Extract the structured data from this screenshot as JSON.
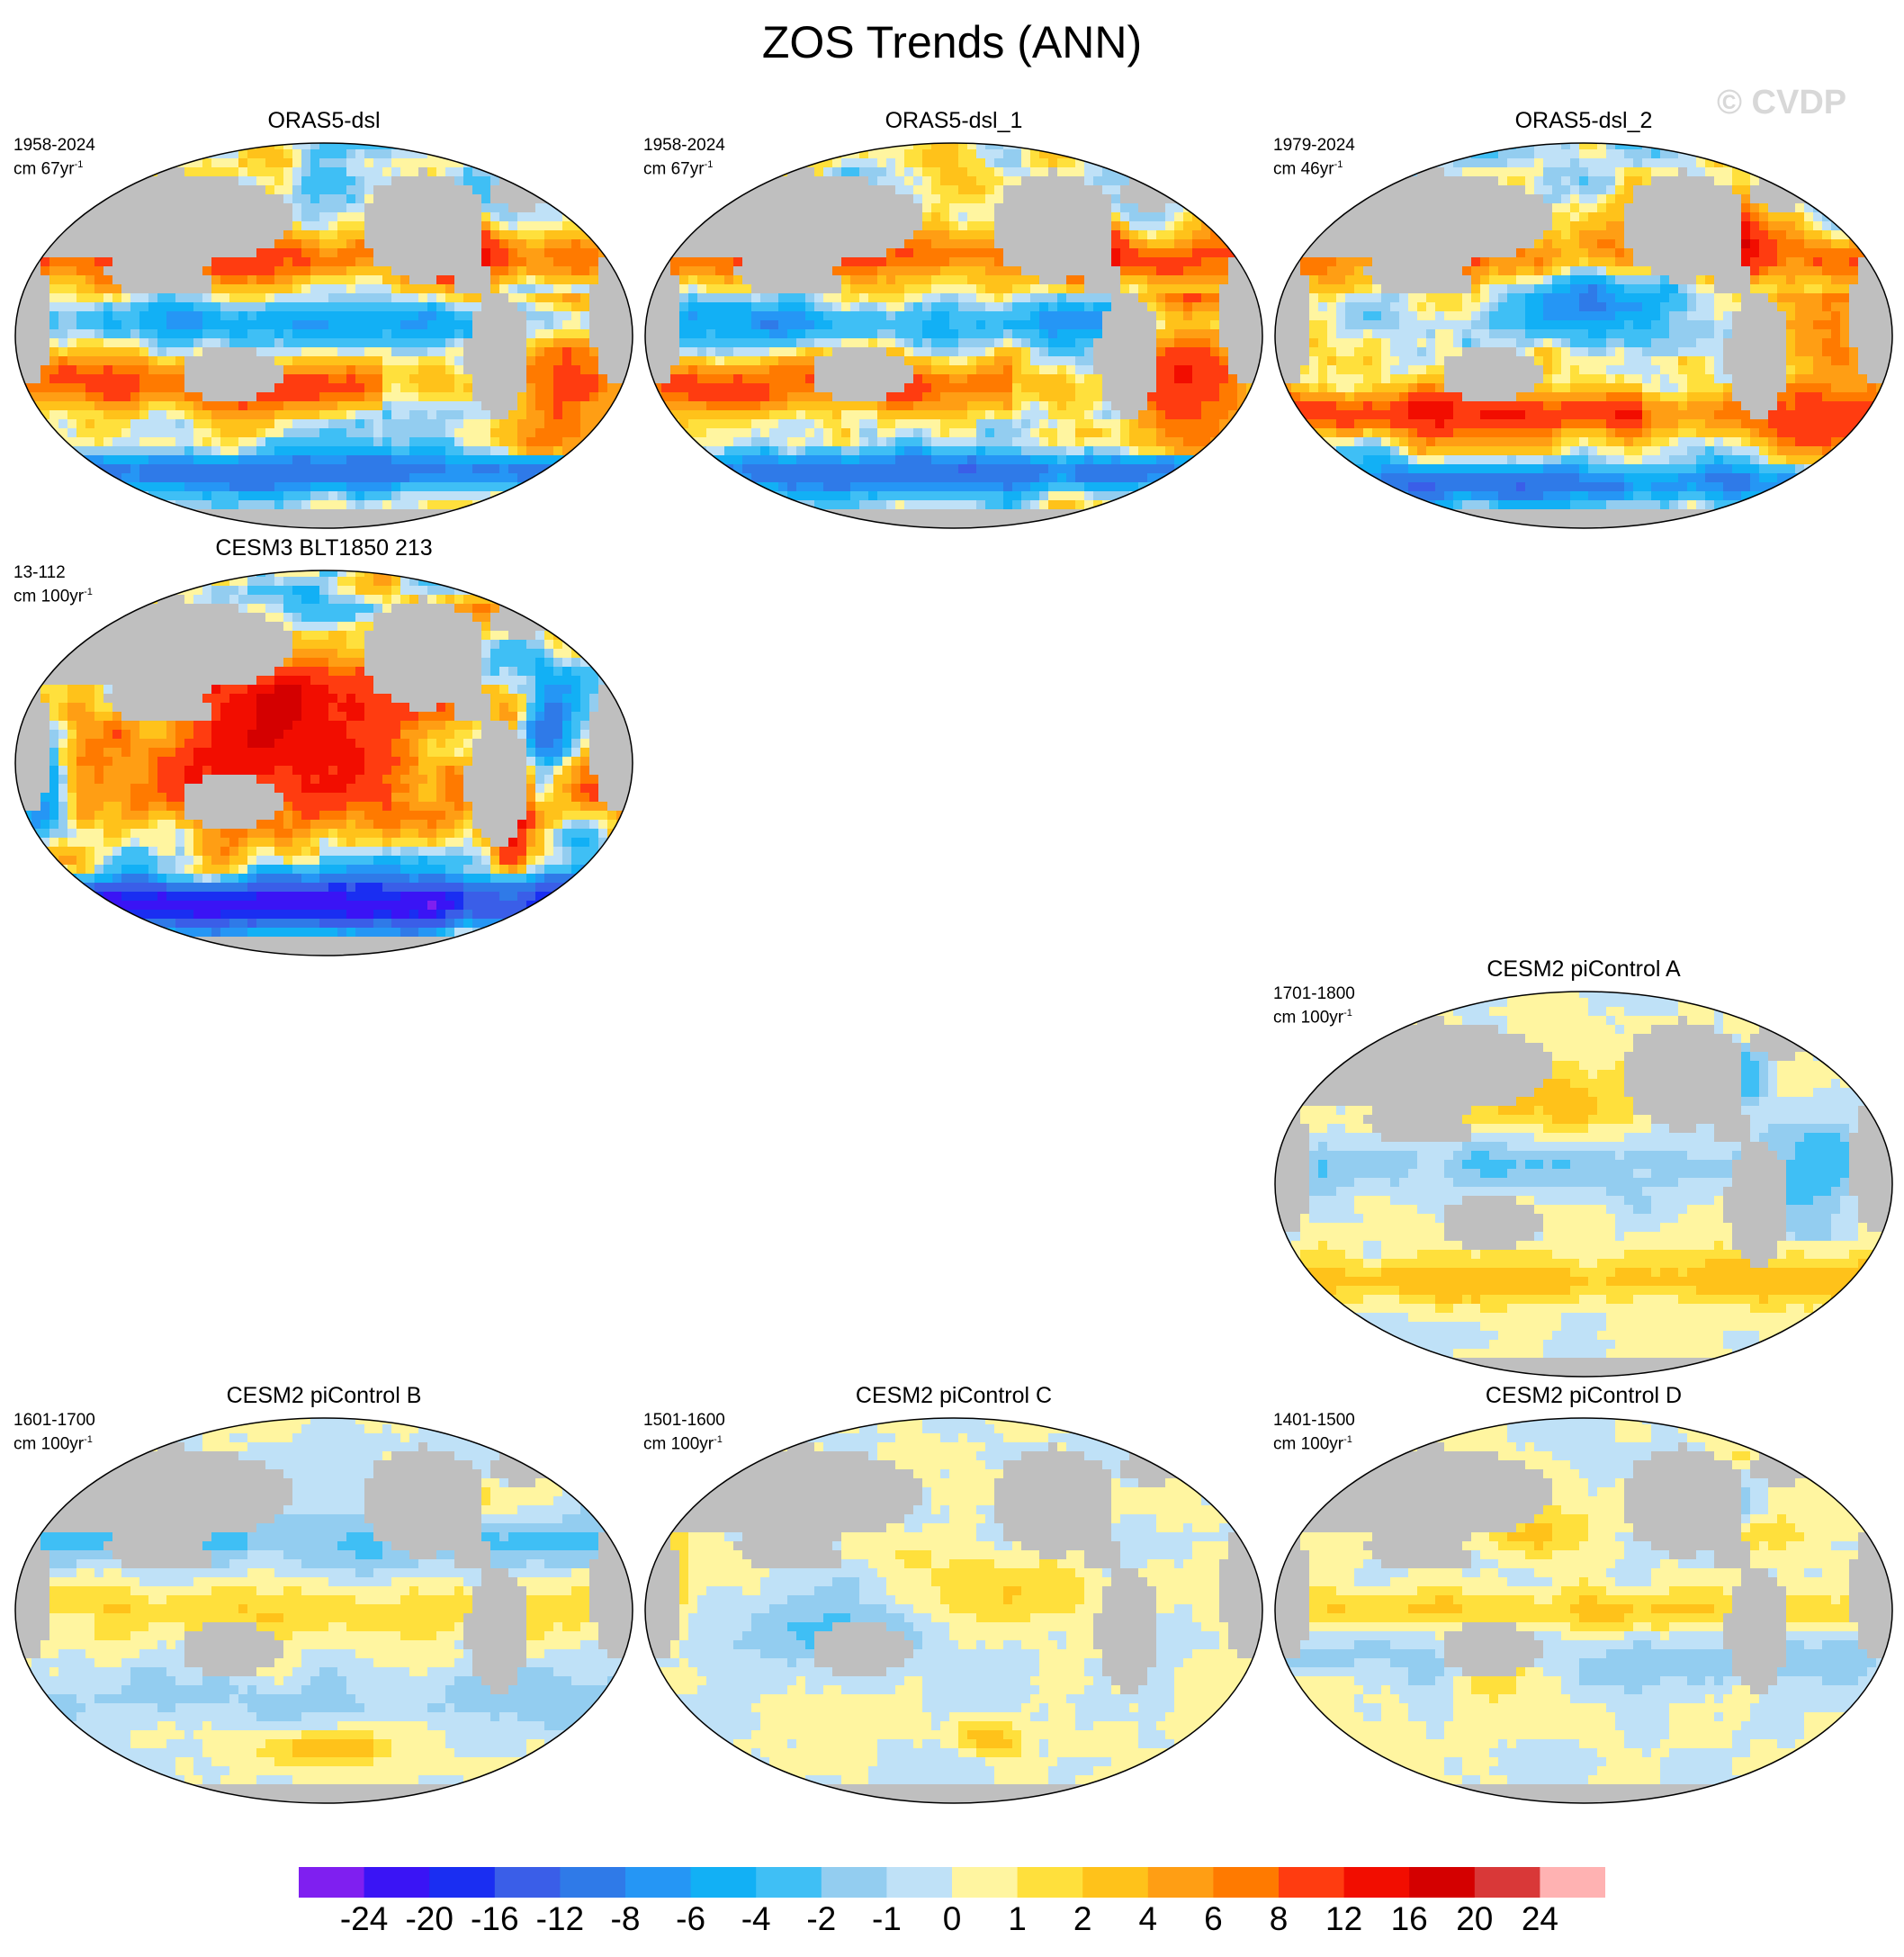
{
  "title": "ZOS Trends (ANN)",
  "watermark": "© CVDP",
  "panels": [
    {
      "title": "ORAS5-dsl",
      "period": "1958-2024",
      "units": "cm 67yr",
      "units_sup": "-1",
      "style": "obs_a"
    },
    {
      "title": "ORAS5-dsl_1",
      "period": "1958-2024",
      "units": "cm 67yr",
      "units_sup": "-1",
      "style": "obs_a"
    },
    {
      "title": "ORAS5-dsl_2",
      "period": "1979-2024",
      "units": "cm 46yr",
      "units_sup": "-1",
      "style": "obs_b"
    },
    {
      "title": "CESM3 BLT1850 213",
      "period": "13-112",
      "units": "cm 100yr",
      "units_sup": "-1",
      "style": "model_strong"
    },
    {
      "title": "CESM2 piControl A",
      "period": "1701-1800",
      "units": "cm 100yr",
      "units_sup": "-1",
      "style": "ctrl_a"
    },
    {
      "title": "CESM2 piControl B",
      "period": "1601-1700",
      "units": "cm 100yr",
      "units_sup": "-1",
      "style": "ctrl_b"
    },
    {
      "title": "CESM2 piControl C",
      "period": "1501-1600",
      "units": "cm 100yr",
      "units_sup": "-1",
      "style": "ctrl_c"
    },
    {
      "title": "CESM2 piControl D",
      "period": "1401-1500",
      "units": "cm 100yr",
      "units_sup": "-1",
      "style": "ctrl_d"
    }
  ],
  "colorbar": {
    "labels": [
      "-24",
      "-20",
      "-16",
      "-12",
      "-8",
      "-6",
      "-4",
      "-2",
      "-1",
      "0",
      "1",
      "2",
      "4",
      "6",
      "8",
      "12",
      "16",
      "20",
      "24"
    ],
    "colors": [
      "#7f1ff0",
      "#3a14f5",
      "#1a2ef2",
      "#3a5ee8",
      "#2f7ae8",
      "#2596f5",
      "#12b0f5",
      "#3fbff5",
      "#93cdf0",
      "#bfe1f7",
      "#fff5a0",
      "#ffe03c",
      "#ffc21a",
      "#ff9e14",
      "#ff7a00",
      "#ff3c10",
      "#f20d00",
      "#d40000",
      "#d93838",
      "#ffb2b2"
    ]
  }
}
